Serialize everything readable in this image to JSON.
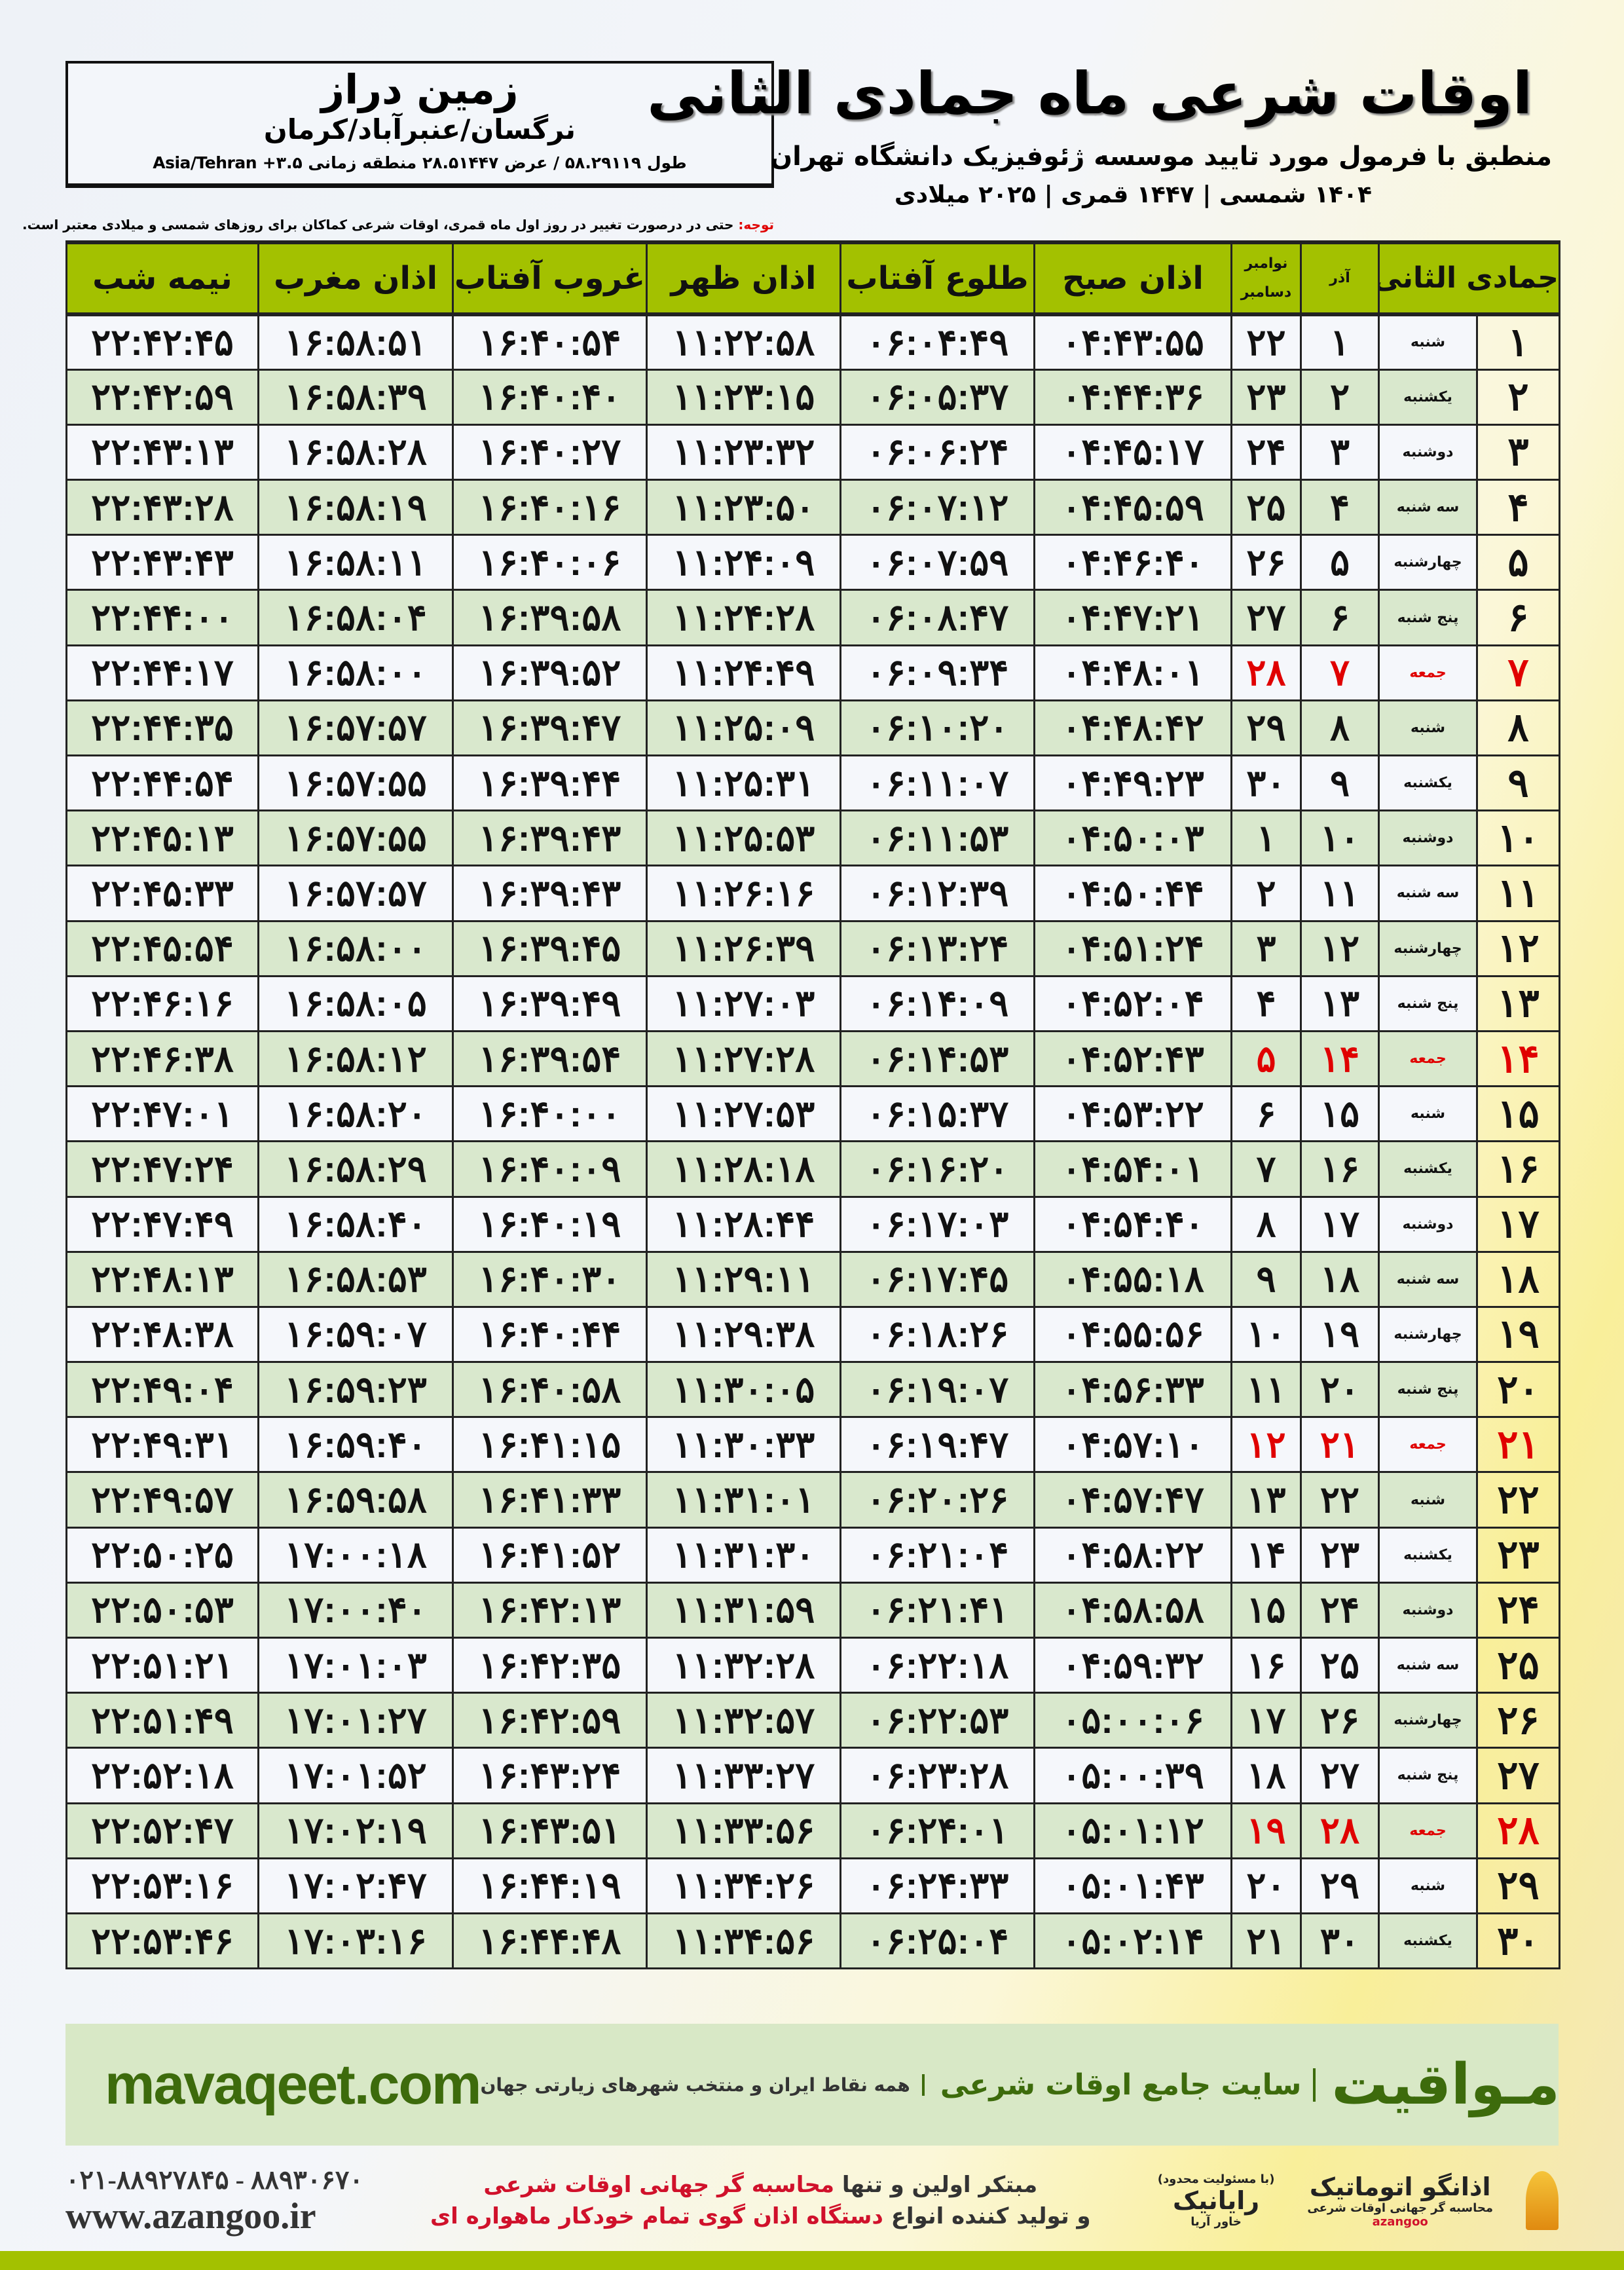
{
  "location": {
    "name": "زمین دراز",
    "path": "نرگسان/عنبرآباد/کرمان",
    "coords": "طول ۵۸.۲۹۱۱۹ / عرض ۲۸.۵۱۴۴۷ منطقه زمانی ۳.۵+ Asia/Tehran"
  },
  "header": {
    "title": "اوقات شرعی ماه جمادی الثانی",
    "subtitle": "منطبق با فرمول مورد تایید موسسه ژئوفیزیک دانشگاه تهران",
    "years": "۱۴۰۴ شمسی | ۱۴۴۷ قمری | ۲۰۲۵ میلادی"
  },
  "note": {
    "label": "توجه:",
    "text": " حتی در درصورت تغییر در روز اول ماه قمری، اوقات شرعی کماکان برای روزهای شمسی و میلادی معتبر است."
  },
  "table": {
    "columns": {
      "hijri": "جمادی الثانی",
      "azar": "آذر",
      "greg_top": "نوامبر",
      "greg_bottom": "دسامبر",
      "fajr": "اذان صبح",
      "sunrise": "طلوع آفتاب",
      "dhuhr": "اذان ظهر",
      "sunset": "غروب آفتاب",
      "maghrib": "اذان مغرب",
      "midnight": "نیمه شب"
    },
    "rows": [
      {
        "h": "۱",
        "wd": "شنبه",
        "az": "۱",
        "gr": "۲۲",
        "t": [
          "۰۴:۴۳:۵۵",
          "۰۶:۰۴:۴۹",
          "۱۱:۲۲:۵۸",
          "۱۶:۴۰:۵۴",
          "۱۶:۵۸:۵۱",
          "۲۲:۴۲:۴۵"
        ]
      },
      {
        "h": "۲",
        "wd": "یکشنبه",
        "az": "۲",
        "gr": "۲۳",
        "t": [
          "۰۴:۴۴:۳۶",
          "۰۶:۰۵:۳۷",
          "۱۱:۲۳:۱۵",
          "۱۶:۴۰:۴۰",
          "۱۶:۵۸:۳۹",
          "۲۲:۴۲:۵۹"
        ]
      },
      {
        "h": "۳",
        "wd": "دوشنبه",
        "az": "۳",
        "gr": "۲۴",
        "t": [
          "۰۴:۴۵:۱۷",
          "۰۶:۰۶:۲۴",
          "۱۱:۲۳:۳۲",
          "۱۶:۴۰:۲۷",
          "۱۶:۵۸:۲۸",
          "۲۲:۴۳:۱۳"
        ]
      },
      {
        "h": "۴",
        "wd": "سه شنبه",
        "az": "۴",
        "gr": "۲۵",
        "t": [
          "۰۴:۴۵:۵۹",
          "۰۶:۰۷:۱۲",
          "۱۱:۲۳:۵۰",
          "۱۶:۴۰:۱۶",
          "۱۶:۵۸:۱۹",
          "۲۲:۴۳:۲۸"
        ]
      },
      {
        "h": "۵",
        "wd": "چهارشنبه",
        "az": "۵",
        "gr": "۲۶",
        "t": [
          "۰۴:۴۶:۴۰",
          "۰۶:۰۷:۵۹",
          "۱۱:۲۴:۰۹",
          "۱۶:۴۰:۰۶",
          "۱۶:۵۸:۱۱",
          "۲۲:۴۳:۴۳"
        ]
      },
      {
        "h": "۶",
        "wd": "پنج شنبه",
        "az": "۶",
        "gr": "۲۷",
        "t": [
          "۰۴:۴۷:۲۱",
          "۰۶:۰۸:۴۷",
          "۱۱:۲۴:۲۸",
          "۱۶:۳۹:۵۸",
          "۱۶:۵۸:۰۴",
          "۲۲:۴۴:۰۰"
        ]
      },
      {
        "h": "۷",
        "wd": "جمعه",
        "az": "۷",
        "gr": "۲۸",
        "t": [
          "۰۴:۴۸:۰۱",
          "۰۶:۰۹:۳۴",
          "۱۱:۲۴:۴۹",
          "۱۶:۳۹:۵۲",
          "۱۶:۵۸:۰۰",
          "۲۲:۴۴:۱۷"
        ]
      },
      {
        "h": "۸",
        "wd": "شنبه",
        "az": "۸",
        "gr": "۲۹",
        "t": [
          "۰۴:۴۸:۴۲",
          "۰۶:۱۰:۲۰",
          "۱۱:۲۵:۰۹",
          "۱۶:۳۹:۴۷",
          "۱۶:۵۷:۵۷",
          "۲۲:۴۴:۳۵"
        ]
      },
      {
        "h": "۹",
        "wd": "یکشنبه",
        "az": "۹",
        "gr": "۳۰",
        "t": [
          "۰۴:۴۹:۲۳",
          "۰۶:۱۱:۰۷",
          "۱۱:۲۵:۳۱",
          "۱۶:۳۹:۴۴",
          "۱۶:۵۷:۵۵",
          "۲۲:۴۴:۵۴"
        ]
      },
      {
        "h": "۱۰",
        "wd": "دوشنبه",
        "az": "۱۰",
        "gr": "۱",
        "t": [
          "۰۴:۵۰:۰۳",
          "۰۶:۱۱:۵۳",
          "۱۱:۲۵:۵۳",
          "۱۶:۳۹:۴۳",
          "۱۶:۵۷:۵۵",
          "۲۲:۴۵:۱۳"
        ]
      },
      {
        "h": "۱۱",
        "wd": "سه شنبه",
        "az": "۱۱",
        "gr": "۲",
        "t": [
          "۰۴:۵۰:۴۴",
          "۰۶:۱۲:۳۹",
          "۱۱:۲۶:۱۶",
          "۱۶:۳۹:۴۳",
          "۱۶:۵۷:۵۷",
          "۲۲:۴۵:۳۳"
        ]
      },
      {
        "h": "۱۲",
        "wd": "چهارشنبه",
        "az": "۱۲",
        "gr": "۳",
        "t": [
          "۰۴:۵۱:۲۴",
          "۰۶:۱۳:۲۴",
          "۱۱:۲۶:۳۹",
          "۱۶:۳۹:۴۵",
          "۱۶:۵۸:۰۰",
          "۲۲:۴۵:۵۴"
        ]
      },
      {
        "h": "۱۳",
        "wd": "پنج شنبه",
        "az": "۱۳",
        "gr": "۴",
        "t": [
          "۰۴:۵۲:۰۴",
          "۰۶:۱۴:۰۹",
          "۱۱:۲۷:۰۳",
          "۱۶:۳۹:۴۹",
          "۱۶:۵۸:۰۵",
          "۲۲:۴۶:۱۶"
        ]
      },
      {
        "h": "۱۴",
        "wd": "جمعه",
        "az": "۱۴",
        "gr": "۵",
        "t": [
          "۰۴:۵۲:۴۳",
          "۰۶:۱۴:۵۳",
          "۱۱:۲۷:۲۸",
          "۱۶:۳۹:۵۴",
          "۱۶:۵۸:۱۲",
          "۲۲:۴۶:۳۸"
        ]
      },
      {
        "h": "۱۵",
        "wd": "شنبه",
        "az": "۱۵",
        "gr": "۶",
        "t": [
          "۰۴:۵۳:۲۲",
          "۰۶:۱۵:۳۷",
          "۱۱:۲۷:۵۳",
          "۱۶:۴۰:۰۰",
          "۱۶:۵۸:۲۰",
          "۲۲:۴۷:۰۱"
        ]
      },
      {
        "h": "۱۶",
        "wd": "یکشنبه",
        "az": "۱۶",
        "gr": "۷",
        "t": [
          "۰۴:۵۴:۰۱",
          "۰۶:۱۶:۲۰",
          "۱۱:۲۸:۱۸",
          "۱۶:۴۰:۰۹",
          "۱۶:۵۸:۲۹",
          "۲۲:۴۷:۲۴"
        ]
      },
      {
        "h": "۱۷",
        "wd": "دوشنبه",
        "az": "۱۷",
        "gr": "۸",
        "t": [
          "۰۴:۵۴:۴۰",
          "۰۶:۱۷:۰۳",
          "۱۱:۲۸:۴۴",
          "۱۶:۴۰:۱۹",
          "۱۶:۵۸:۴۰",
          "۲۲:۴۷:۴۹"
        ]
      },
      {
        "h": "۱۸",
        "wd": "سه شنبه",
        "az": "۱۸",
        "gr": "۹",
        "t": [
          "۰۴:۵۵:۱۸",
          "۰۶:۱۷:۴۵",
          "۱۱:۲۹:۱۱",
          "۱۶:۴۰:۳۰",
          "۱۶:۵۸:۵۳",
          "۲۲:۴۸:۱۳"
        ]
      },
      {
        "h": "۱۹",
        "wd": "چهارشنبه",
        "az": "۱۹",
        "gr": "۱۰",
        "t": [
          "۰۴:۵۵:۵۶",
          "۰۶:۱۸:۲۶",
          "۱۱:۲۹:۳۸",
          "۱۶:۴۰:۴۴",
          "۱۶:۵۹:۰۷",
          "۲۲:۴۸:۳۸"
        ]
      },
      {
        "h": "۲۰",
        "wd": "پنج شنبه",
        "az": "۲۰",
        "gr": "۱۱",
        "t": [
          "۰۴:۵۶:۳۳",
          "۰۶:۱۹:۰۷",
          "۱۱:۳۰:۰۵",
          "۱۶:۴۰:۵۸",
          "۱۶:۵۹:۲۳",
          "۲۲:۴۹:۰۴"
        ]
      },
      {
        "h": "۲۱",
        "wd": "جمعه",
        "az": "۲۱",
        "gr": "۱۲",
        "t": [
          "۰۴:۵۷:۱۰",
          "۰۶:۱۹:۴۷",
          "۱۱:۳۰:۳۳",
          "۱۶:۴۱:۱۵",
          "۱۶:۵۹:۴۰",
          "۲۲:۴۹:۳۱"
        ]
      },
      {
        "h": "۲۲",
        "wd": "شنبه",
        "az": "۲۲",
        "gr": "۱۳",
        "t": [
          "۰۴:۵۷:۴۷",
          "۰۶:۲۰:۲۶",
          "۱۱:۳۱:۰۱",
          "۱۶:۴۱:۳۳",
          "۱۶:۵۹:۵۸",
          "۲۲:۴۹:۵۷"
        ]
      },
      {
        "h": "۲۳",
        "wd": "یکشنبه",
        "az": "۲۳",
        "gr": "۱۴",
        "t": [
          "۰۴:۵۸:۲۲",
          "۰۶:۲۱:۰۴",
          "۱۱:۳۱:۳۰",
          "۱۶:۴۱:۵۲",
          "۱۷:۰۰:۱۸",
          "۲۲:۵۰:۲۵"
        ]
      },
      {
        "h": "۲۴",
        "wd": "دوشنبه",
        "az": "۲۴",
        "gr": "۱۵",
        "t": [
          "۰۴:۵۸:۵۸",
          "۰۶:۲۱:۴۱",
          "۱۱:۳۱:۵۹",
          "۱۶:۴۲:۱۳",
          "۱۷:۰۰:۴۰",
          "۲۲:۵۰:۵۳"
        ]
      },
      {
        "h": "۲۵",
        "wd": "سه شنبه",
        "az": "۲۵",
        "gr": "۱۶",
        "t": [
          "۰۴:۵۹:۳۲",
          "۰۶:۲۲:۱۸",
          "۱۱:۳۲:۲۸",
          "۱۶:۴۲:۳۵",
          "۱۷:۰۱:۰۳",
          "۲۲:۵۱:۲۱"
        ]
      },
      {
        "h": "۲۶",
        "wd": "چهارشنبه",
        "az": "۲۶",
        "gr": "۱۷",
        "t": [
          "۰۵:۰۰:۰۶",
          "۰۶:۲۲:۵۳",
          "۱۱:۳۲:۵۷",
          "۱۶:۴۲:۵۹",
          "۱۷:۰۱:۲۷",
          "۲۲:۵۱:۴۹"
        ]
      },
      {
        "h": "۲۷",
        "wd": "پنج شنبه",
        "az": "۲۷",
        "gr": "۱۸",
        "t": [
          "۰۵:۰۰:۳۹",
          "۰۶:۲۳:۲۸",
          "۱۱:۳۳:۲۷",
          "۱۶:۴۳:۲۴",
          "۱۷:۰۱:۵۲",
          "۲۲:۵۲:۱۸"
        ]
      },
      {
        "h": "۲۸",
        "wd": "جمعه",
        "az": "۲۸",
        "gr": "۱۹",
        "t": [
          "۰۵:۰۱:۱۲",
          "۰۶:۲۴:۰۱",
          "۱۱:۳۳:۵۶",
          "۱۶:۴۳:۵۱",
          "۱۷:۰۲:۱۹",
          "۲۲:۵۲:۴۷"
        ]
      },
      {
        "h": "۲۹",
        "wd": "شنبه",
        "az": "۲۹",
        "gr": "۲۰",
        "t": [
          "۰۵:۰۱:۴۳",
          "۰۶:۲۴:۳۳",
          "۱۱:۳۴:۲۶",
          "۱۶:۴۴:۱۹",
          "۱۷:۰۲:۴۷",
          "۲۲:۵۳:۱۶"
        ]
      },
      {
        "h": "۳۰",
        "wd": "یکشنبه",
        "az": "۳۰",
        "gr": "۲۱",
        "t": [
          "۰۵:۰۲:۱۴",
          "۰۶:۲۵:۰۴",
          "۱۱:۳۴:۵۶",
          "۱۶:۴۴:۴۸",
          "۱۷:۰۳:۱۶",
          "۲۲:۵۳:۴۶"
        ]
      }
    ]
  },
  "footer": {
    "brand": "مـواقیت",
    "brand_sub": "سایت جامع اوقات شرعی",
    "brand_tag": "همه نقاط ایران و منتخب شهرهای زیارتی جهان",
    "site": "mavaqeet.com",
    "slogan1_a": "مبتکر اولین و تنها ",
    "slogan1_b": "محاسبه گر جهانی اوقات شرعی",
    "slogan2_a": "و تولید کننده انواع ",
    "slogan2_b": "دستگاه اذان گوی تمام خودکار ماهواره ای",
    "phone": "۰۲۱-۸۸۹۲۷۸۴۵ - ۸۸۹۳۰۶۷۰",
    "web": "www.azangoo.ir",
    "logo1": "اذانگو اتوماتیک",
    "logo1_sub": "محاسبه گر جهانی اوقات شرعی",
    "logo1_en": "azangoo",
    "logo2": "رایانیک",
    "logo2_sub": "خاور آریا",
    "logo2_note": "(با مسئولیت محدود)"
  },
  "colors": {
    "header_green": "#a3c100",
    "row_green": "#d9e8cd",
    "friday_red": "#e00000",
    "brand_green": "#3d6b0c"
  }
}
